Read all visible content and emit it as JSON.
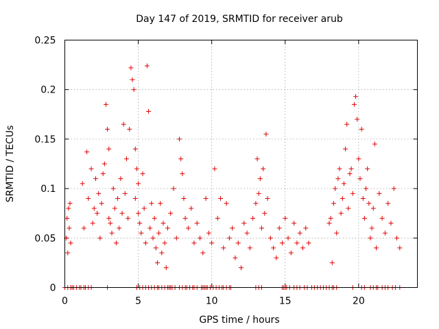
{
  "chart_data": {
    "type": "scatter",
    "title": "Day 147 of 2019, SRMTID for receiver arub",
    "xlabel": "GPS time / hours",
    "ylabel": "SRMTID / TECUs",
    "xlim": [
      0,
      24
    ],
    "ylim": [
      0,
      0.25
    ],
    "xticks": [
      0,
      5,
      10,
      15,
      20
    ],
    "xtick_labels": [
      "0",
      "5",
      "10",
      "15",
      "20"
    ],
    "yticks": [
      0,
      0.05,
      0.1,
      0.15,
      0.2,
      0.25
    ],
    "ytick_labels": [
      "0",
      "0.05",
      "0.1",
      "0.15",
      "0.2",
      "0.25"
    ],
    "grid": true,
    "marker": "+",
    "color": "#e00000",
    "series": [
      {
        "name": "SRMTID",
        "x": [
          0.1,
          0.15,
          0.2,
          0.25,
          0.3,
          0.35,
          0.4,
          1.2,
          1.3,
          1.5,
          1.6,
          1.8,
          1.9,
          2.0,
          2.1,
          2.2,
          2.3,
          2.4,
          2.5,
          2.6,
          2.7,
          2.8,
          2.9,
          3.0,
          3.0,
          3.1,
          3.2,
          3.3,
          3.4,
          3.5,
          3.6,
          3.7,
          3.8,
          3.9,
          4.0,
          4.1,
          4.2,
          4.3,
          4.4,
          4.5,
          4.6,
          4.7,
          4.8,
          4.8,
          4.9,
          5.0,
          5.0,
          5.1,
          5.2,
          5.3,
          5.4,
          5.5,
          5.6,
          5.7,
          5.8,
          5.9,
          6.0,
          6.1,
          6.2,
          6.3,
          6.4,
          6.5,
          6.6,
          6.7,
          6.8,
          6.9,
          7.0,
          7.2,
          7.4,
          7.6,
          7.8,
          7.9,
          8.0,
          8.1,
          8.2,
          8.4,
          8.6,
          8.8,
          9.0,
          9.2,
          9.4,
          9.6,
          9.8,
          10.0,
          10.2,
          10.4,
          10.6,
          10.8,
          11.0,
          11.2,
          11.4,
          11.6,
          11.8,
          12.0,
          12.2,
          12.4,
          12.6,
          12.8,
          13.0,
          13.1,
          13.2,
          13.3,
          13.4,
          13.5,
          13.6,
          13.7,
          13.8,
          14.0,
          14.2,
          14.4,
          14.6,
          14.8,
          15.0,
          15.2,
          15.4,
          15.6,
          15.8,
          16.0,
          16.2,
          16.4,
          16.6,
          18.0,
          18.1,
          18.2,
          18.3,
          18.4,
          18.5,
          18.6,
          18.7,
          18.8,
          18.9,
          19.0,
          19.1,
          19.2,
          19.3,
          19.4,
          19.5,
          19.6,
          19.7,
          19.8,
          19.9,
          20.0,
          20.1,
          20.2,
          20.3,
          20.4,
          20.5,
          20.6,
          20.7,
          20.8,
          20.9,
          21.0,
          21.1,
          21.2,
          21.4,
          21.6,
          21.8,
          22.0,
          22.2,
          22.4,
          22.6,
          22.8
        ],
        "y": [
          0.05,
          0.07,
          0.035,
          0.08,
          0.06,
          0.085,
          0.045,
          0.105,
          0.06,
          0.137,
          0.09,
          0.12,
          0.065,
          0.08,
          0.11,
          0.075,
          0.095,
          0.05,
          0.085,
          0.115,
          0.125,
          0.185,
          0.16,
          0.07,
          0.14,
          0.065,
          0.055,
          0.1,
          0.08,
          0.045,
          0.09,
          0.06,
          0.11,
          0.075,
          0.165,
          0.095,
          0.13,
          0.07,
          0.16,
          0.222,
          0.21,
          0.2,
          0.14,
          0.09,
          0.12,
          0.105,
          0.075,
          0.065,
          0.055,
          0.115,
          0.08,
          0.045,
          0.224,
          0.178,
          0.06,
          0.085,
          0.05,
          0.07,
          0.04,
          0.025,
          0.055,
          0.085,
          0.035,
          0.065,
          0.045,
          0.02,
          0.06,
          0.075,
          0.1,
          0.05,
          0.15,
          0.13,
          0.115,
          0.09,
          0.07,
          0.06,
          0.08,
          0.045,
          0.065,
          0.05,
          0.035,
          0.09,
          0.055,
          0.045,
          0.12,
          0.07,
          0.09,
          0.04,
          0.085,
          0.05,
          0.06,
          0.03,
          0.045,
          0.02,
          0.065,
          0.055,
          0.04,
          0.07,
          0.085,
          0.13,
          0.095,
          0.11,
          0.06,
          0.12,
          0.075,
          0.155,
          0.09,
          0.05,
          0.04,
          0.03,
          0.06,
          0.045,
          0.07,
          0.05,
          0.035,
          0.065,
          0.045,
          0.055,
          0.04,
          0.06,
          0.045,
          0.065,
          0.07,
          0.025,
          0.085,
          0.1,
          0.055,
          0.11,
          0.12,
          0.075,
          0.09,
          0.105,
          0.14,
          0.165,
          0.08,
          0.115,
          0.12,
          0.095,
          0.185,
          0.193,
          0.17,
          0.13,
          0.11,
          0.16,
          0.09,
          0.07,
          0.1,
          0.12,
          0.085,
          0.05,
          0.06,
          0.08,
          0.145,
          0.04,
          0.095,
          0.07,
          0.055,
          0.085,
          0.065,
          0.1,
          0.05,
          0.04
        ],
        "zero_x": [
          0.0,
          0.2,
          0.4,
          0.5,
          0.6,
          0.8,
          1.0,
          1.1,
          1.3,
          1.4,
          1.6,
          1.8,
          2.9,
          4.9,
          5.1,
          5.3,
          5.5,
          5.7,
          5.9,
          6.1,
          6.3,
          6.4,
          6.6,
          6.8,
          7.0,
          7.1,
          7.2,
          7.3,
          7.5,
          7.8,
          8.0,
          8.2,
          8.3,
          8.5,
          8.7,
          8.8,
          9.0,
          9.3,
          9.4,
          9.5,
          9.6,
          9.7,
          9.9,
          10.1,
          10.3,
          10.5,
          10.7,
          10.8,
          11.0,
          11.2,
          11.3,
          13.0,
          13.2,
          13.4,
          14.8,
          14.9,
          15.0,
          15.1,
          15.3,
          15.6,
          15.8,
          16.0,
          16.3,
          16.5,
          16.8,
          17.0,
          17.2,
          17.4,
          17.6,
          17.8,
          18.0,
          18.2,
          18.3,
          18.5,
          19.6,
          20.2,
          20.4,
          20.8,
          21.0,
          21.2,
          21.3,
          21.6,
          21.8,
          22.0,
          22.3,
          22.5,
          22.8
        ]
      }
    ]
  }
}
